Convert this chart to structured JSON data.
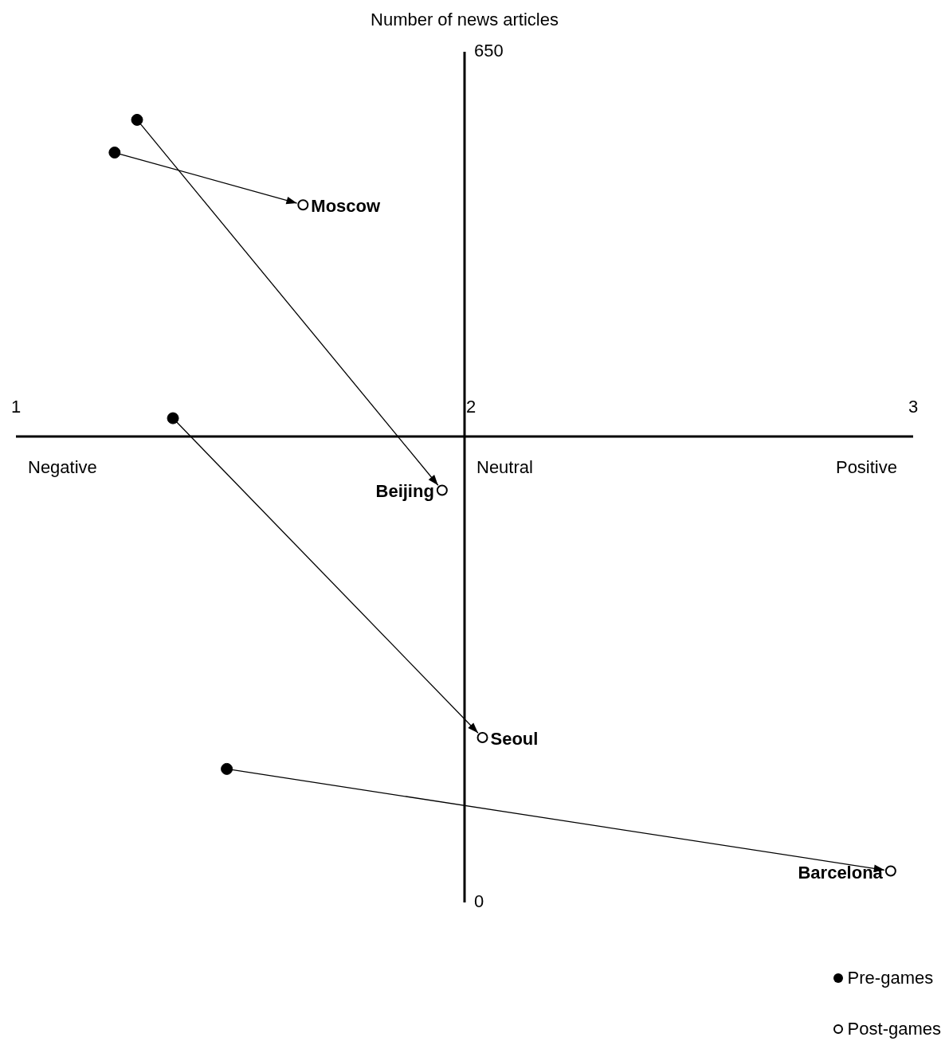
{
  "chart_data": {
    "type": "scatter",
    "ylabel": "Number of news articles",
    "xlim": [
      1,
      3
    ],
    "xticks": [
      1,
      2,
      3
    ],
    "ylim": [
      0,
      650
    ],
    "yticks": [
      0,
      {
        "value": 356,
        "label": null
      },
      650
    ],
    "legend": "bottom right",
    "series": [
      {
        "name": "Pre-games",
        "color": "#000000",
        "marker": "circle",
        "x": [
          1.22,
          1.27,
          1.35,
          1.47
        ],
        "values": [
          573,
          598,
          370,
          102
        ]
      },
      {
        "name": "Post-games",
        "color": "#000000",
        "marker": "circle",
        "x": [
          1.64,
          1.95,
          2.04,
          2.95
        ],
        "values": [
          533,
          315,
          126,
          24
        ]
      }
    ],
    "annotations": [
      {
        "text": "Moscow",
        "x": 1.64,
        "y": 533
      },
      {
        "text": "Beijing",
        "x": 1.95,
        "y": 315
      },
      {
        "text": "Seoul",
        "x": 2.04,
        "y": 126
      },
      {
        "text": "Barcelona",
        "x": 2.95,
        "y": 24
      },
      "Negative",
      "Neutral",
      "Positive"
    ]
  }
}
